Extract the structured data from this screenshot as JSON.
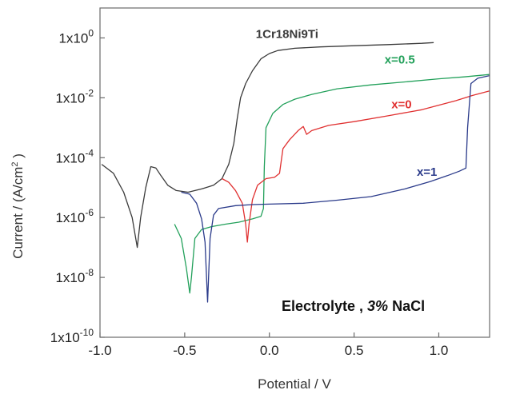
{
  "chart_data": {
    "type": "line",
    "title": "",
    "xlabel": "Potential / V",
    "ylabel_text": "Current / (A/cm",
    "ylabel_sup": "2",
    "ylabel_close": " )",
    "xlim": [
      -1.0,
      1.3
    ],
    "ylim": [
      1e-10,
      10.0
    ],
    "yscale": "log",
    "grid": false,
    "x_ticks": [
      {
        "value": -1.0,
        "label": "-1.0"
      },
      {
        "value": -0.5,
        "label": "-0.5"
      },
      {
        "value": 0.0,
        "label": "0.0"
      },
      {
        "value": 0.5,
        "label": "0.5"
      },
      {
        "value": 1.0,
        "label": "1.0"
      }
    ],
    "y_ticks": [
      {
        "value": 1,
        "base": "1x10",
        "exp": "0"
      },
      {
        "value": 0.01,
        "base": "1x10",
        "exp": "-2"
      },
      {
        "value": 0.0001,
        "base": "1x10",
        "exp": "-4"
      },
      {
        "value": 1e-06,
        "base": "1x10",
        "exp": "-6"
      },
      {
        "value": 1e-08,
        "base": "1x10",
        "exp": "-8"
      },
      {
        "value": 1e-10,
        "base": "1x10",
        "exp": "-10"
      }
    ],
    "annotation": {
      "prefix": "Electrolyte ,  ",
      "emph": "3%",
      "suffix": " NaCl"
    },
    "series": [
      {
        "name": "1Cr18Ni9Ti",
        "color": "#3a3a3a",
        "label_at": [
          -0.08,
          1.0
        ],
        "points": [
          [
            -0.99,
            6e-05
          ],
          [
            -0.92,
            3e-05
          ],
          [
            -0.86,
            7e-06
          ],
          [
            -0.81,
            1e-06
          ],
          [
            -0.78,
            1e-07
          ],
          [
            -0.76,
            1e-06
          ],
          [
            -0.73,
            1e-05
          ],
          [
            -0.7,
            5e-05
          ],
          [
            -0.67,
            4.5e-05
          ],
          [
            -0.64,
            2.5e-05
          ],
          [
            -0.6,
            1.2e-05
          ],
          [
            -0.55,
            8e-06
          ],
          [
            -0.48,
            7e-06
          ],
          [
            -0.4,
            9e-06
          ],
          [
            -0.33,
            1.2e-05
          ],
          [
            -0.28,
            2e-05
          ],
          [
            -0.24,
            6e-05
          ],
          [
            -0.21,
            0.0003
          ],
          [
            -0.19,
            0.002
          ],
          [
            -0.17,
            0.01
          ],
          [
            -0.14,
            0.03
          ],
          [
            -0.1,
            0.08
          ],
          [
            -0.05,
            0.2
          ],
          [
            0.0,
            0.3
          ],
          [
            0.05,
            0.38
          ],
          [
            0.15,
            0.45
          ],
          [
            0.3,
            0.5
          ],
          [
            0.5,
            0.55
          ],
          [
            0.7,
            0.6
          ],
          [
            0.9,
            0.66
          ],
          [
            0.97,
            0.7
          ]
        ]
      },
      {
        "name": "x=0.5",
        "color": "#22a05a",
        "label_at": [
          0.68,
          0.14
        ],
        "points": [
          [
            -0.56,
            6e-07
          ],
          [
            -0.52,
            2e-07
          ],
          [
            -0.49,
            2e-08
          ],
          [
            -0.47,
            3e-09
          ],
          [
            -0.46,
            1e-08
          ],
          [
            -0.44,
            2e-07
          ],
          [
            -0.4,
            4e-07
          ],
          [
            -0.34,
            5e-07
          ],
          [
            -0.26,
            6e-07
          ],
          [
            -0.18,
            7e-07
          ],
          [
            -0.1,
            9e-07
          ],
          [
            -0.05,
            1.1e-06
          ],
          [
            -0.035,
            2e-06
          ],
          [
            -0.03,
            5e-05
          ],
          [
            -0.02,
            0.001
          ],
          [
            0.02,
            0.003
          ],
          [
            0.08,
            0.006
          ],
          [
            0.15,
            0.009
          ],
          [
            0.25,
            0.013
          ],
          [
            0.4,
            0.02
          ],
          [
            0.6,
            0.027
          ],
          [
            0.8,
            0.034
          ],
          [
            1.0,
            0.043
          ],
          [
            1.15,
            0.05
          ],
          [
            1.3,
            0.06
          ]
        ]
      },
      {
        "name": "x=0",
        "color": "#e03030",
        "label_at": [
          0.72,
          0.0045
        ],
        "points": [
          [
            -0.28,
            2e-05
          ],
          [
            -0.24,
            1.5e-05
          ],
          [
            -0.2,
            8e-06
          ],
          [
            -0.16,
            3e-06
          ],
          [
            -0.14,
            6e-07
          ],
          [
            -0.13,
            1.5e-07
          ],
          [
            -0.12,
            6e-07
          ],
          [
            -0.1,
            4e-06
          ],
          [
            -0.07,
            1.2e-05
          ],
          [
            -0.02,
            2e-05
          ],
          [
            0.03,
            2.2e-05
          ],
          [
            0.06,
            3e-05
          ],
          [
            0.08,
            0.0002
          ],
          [
            0.12,
            0.0004
          ],
          [
            0.17,
            0.0008
          ],
          [
            0.2,
            0.0011
          ],
          [
            0.22,
            0.0006
          ],
          [
            0.25,
            0.0008
          ],
          [
            0.35,
            0.0012
          ],
          [
            0.5,
            0.0016
          ],
          [
            0.7,
            0.0025
          ],
          [
            0.9,
            0.004
          ],
          [
            1.1,
            0.008
          ],
          [
            1.2,
            0.012
          ],
          [
            1.3,
            0.017
          ]
        ]
      },
      {
        "name": "x=1",
        "color": "#2a3a8a",
        "label_at": [
          0.87,
          2.5e-05
        ],
        "points": [
          [
            -0.52,
            7e-06
          ],
          [
            -0.47,
            6e-06
          ],
          [
            -0.43,
            3e-06
          ],
          [
            -0.4,
            9e-07
          ],
          [
            -0.38,
            1.5e-07
          ],
          [
            -0.365,
            1.5e-09
          ],
          [
            -0.35,
            2e-07
          ],
          [
            -0.33,
            1.2e-06
          ],
          [
            -0.3,
            2e-06
          ],
          [
            -0.2,
            2.5e-06
          ],
          [
            -0.1,
            2.7e-06
          ],
          [
            0.0,
            2.8e-06
          ],
          [
            0.2,
            3e-06
          ],
          [
            0.4,
            3.8e-06
          ],
          [
            0.6,
            5e-06
          ],
          [
            0.8,
            9e-06
          ],
          [
            0.95,
            1.6e-05
          ],
          [
            1.05,
            2.5e-05
          ],
          [
            1.12,
            3.5e-05
          ],
          [
            1.16,
            4.5e-05
          ],
          [
            1.17,
            0.001
          ],
          [
            1.19,
            0.03
          ],
          [
            1.23,
            0.045
          ],
          [
            1.3,
            0.055
          ]
        ]
      }
    ]
  }
}
